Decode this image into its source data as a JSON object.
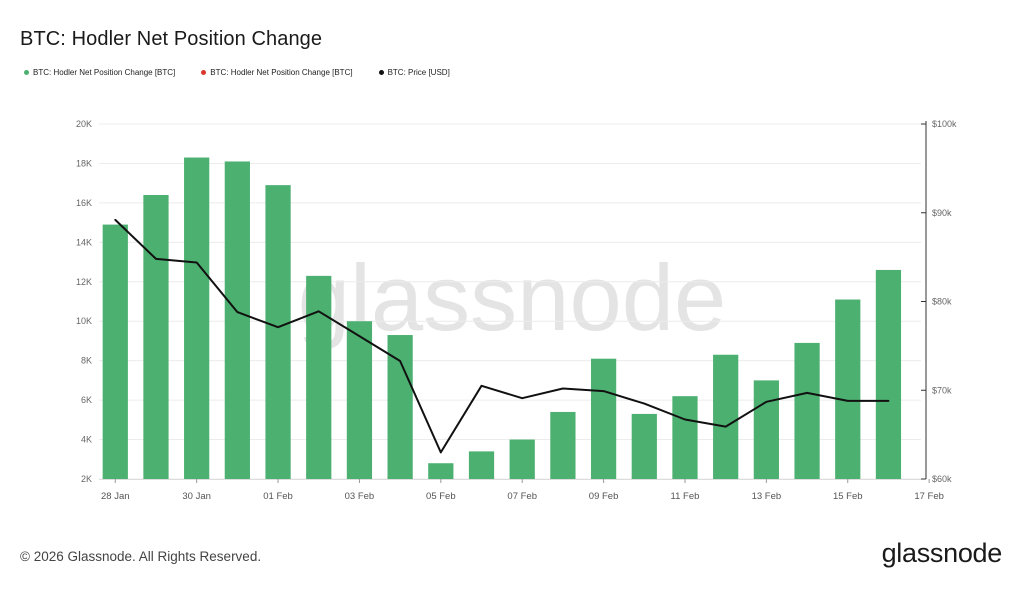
{
  "title": "BTC: Hodler Net Position Change",
  "legend": [
    {
      "label": "BTC: Hodler Net Position Change [BTC]",
      "color": "#4cb070"
    },
    {
      "label": "BTC: Hodler Net Position Change [BTC]",
      "color": "#d9372b"
    },
    {
      "label": "BTC: Price [USD]",
      "color": "#111111"
    }
  ],
  "watermark": "glassnode",
  "footer": "© 2026 Glassnode. All Rights Reserved.",
  "logo": "glassnode",
  "chart_data": {
    "type": "bar",
    "x": [
      "28 Jan",
      "29 Jan",
      "30 Jan",
      "31 Jan",
      "01 Feb",
      "02 Feb",
      "03 Feb",
      "04 Feb",
      "05 Feb",
      "06 Feb",
      "07 Feb",
      "08 Feb",
      "09 Feb",
      "10 Feb",
      "11 Feb",
      "12 Feb",
      "13 Feb",
      "14 Feb",
      "15 Feb",
      "16 Feb"
    ],
    "x_ticks": [
      "28 Jan",
      "30 Jan",
      "01 Feb",
      "03 Feb",
      "05 Feb",
      "07 Feb",
      "09 Feb",
      "11 Feb",
      "13 Feb",
      "15 Feb",
      "17 Feb"
    ],
    "series": [
      {
        "name": "BTC: Hodler Net Position Change [BTC]",
        "type": "bar",
        "axis": "left",
        "color": "#4cb070",
        "values": [
          14900,
          16400,
          18300,
          18100,
          16900,
          12300,
          10000,
          9300,
          2800,
          3400,
          4000,
          5400,
          8100,
          5300,
          6200,
          8300,
          7000,
          8900,
          11100,
          12600
        ]
      },
      {
        "name": "BTC: Price [USD]",
        "type": "line",
        "axis": "right",
        "color": "#111111",
        "values": [
          89200,
          84800,
          84400,
          78800,
          77100,
          78900,
          76100,
          73300,
          63000,
          70500,
          69100,
          70200,
          69900,
          68500,
          66700,
          65900,
          68700,
          69700,
          68800,
          68800
        ]
      }
    ],
    "y_left": {
      "min": 2000,
      "max": 20000,
      "ticks": [
        2000,
        4000,
        6000,
        8000,
        10000,
        12000,
        14000,
        16000,
        18000,
        20000
      ],
      "tick_labels": [
        "2K",
        "4K",
        "6K",
        "8K",
        "10K",
        "12K",
        "14K",
        "16K",
        "18K",
        "20K"
      ]
    },
    "y_right": {
      "min": 60000,
      "max": 100000,
      "ticks": [
        60000,
        70000,
        80000,
        90000,
        100000
      ],
      "tick_labels": [
        "$60k",
        "$70k",
        "$80k",
        "$90k",
        "$100k"
      ]
    },
    "grid": true,
    "legend_position": "top-left"
  }
}
